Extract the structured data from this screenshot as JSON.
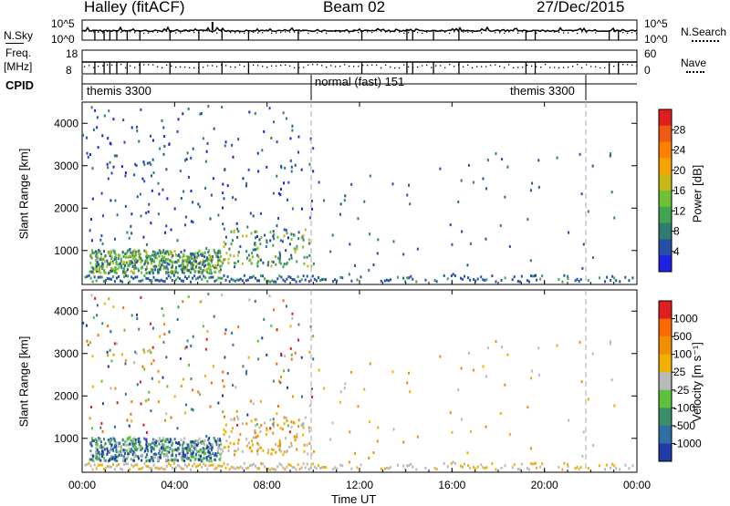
{
  "header": {
    "station": "Halley (fitACF)",
    "beam": "Beam 02",
    "date": "27/Dec/2015"
  },
  "panels": {
    "nsky": {
      "label": "N.Sky",
      "ticks": [
        "10^5",
        "10^0"
      ],
      "right_label": "N.Search",
      "right_ticks": [
        "10^5",
        "10^0"
      ]
    },
    "freq": {
      "label": "Freq.",
      "unit": "[MHz]",
      "ticks": [
        "18",
        "8"
      ],
      "right_label": "Nave",
      "right_ticks": [
        "60",
        "0"
      ]
    },
    "cpid": {
      "label": "CPID",
      "segments": [
        "themis 3300",
        "normal (fast) 151",
        "themis 3300"
      ]
    }
  },
  "colors": {
    "power_scale": [
      "#1f1fe6",
      "#264fa8",
      "#2e7d6f",
      "#3fa553",
      "#6cc232",
      "#c8b817",
      "#f5a400",
      "#ff7f00",
      "#f05a14",
      "#e01e1e"
    ],
    "velocity_scale": [
      "#1f3ca8",
      "#2e70a6",
      "#3b8e6a",
      "#5cc23a",
      "#b9b9b9",
      "#f0b000",
      "#f09000",
      "#ff6a00",
      "#e01e1e"
    ]
  },
  "chart_data": [
    {
      "type": "heatmap",
      "name": "power",
      "ylabel": "Slant Range [km]",
      "yticks": [
        "1000",
        "2000",
        "3000",
        "4000"
      ],
      "ylim": [
        200,
        4500
      ],
      "colorbar_label": "Power [dB]",
      "colorbar_ticks": [
        "28",
        "24",
        "20",
        "16",
        "12",
        "8",
        "4"
      ],
      "clim": [
        0,
        30
      ]
    },
    {
      "type": "heatmap",
      "name": "velocity",
      "ylabel": "Slant Range [km]",
      "yticks": [
        "1000",
        "2000",
        "3000",
        "4000"
      ],
      "ylim": [
        200,
        4500
      ],
      "xlabel": "Time UT",
      "xticks": [
        "00:00",
        "04:00",
        "08:00",
        "12:00",
        "16:00",
        "20:00",
        "00:00"
      ],
      "xlim": [
        0,
        24
      ],
      "colorbar_label": "Velocity [m s⁻¹]",
      "colorbar_ticks": [
        "1000",
        "500",
        "100",
        "25",
        "-25",
        "-100",
        "-500",
        "-1000"
      ]
    }
  ]
}
